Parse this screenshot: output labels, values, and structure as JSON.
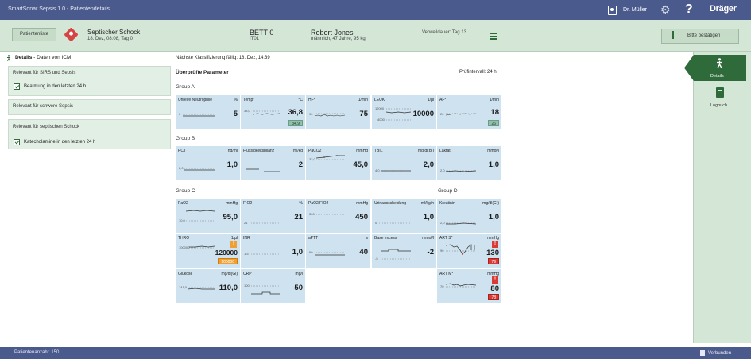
{
  "titlebar": {
    "app_title": "SmartSonar Sepsis 1.0 - Patientendetails",
    "user_name": "Dr. Müller",
    "help_label": "?",
    "brand": "Dräger"
  },
  "header": {
    "patient_list_button": "Patientenliste",
    "diagnosis_title": "Septischer Schock",
    "diagnosis_sub": "18. Dez, 08:08, Tag 0",
    "bed": "BETT 0",
    "unit": "IT01",
    "patient_name": "Robert Jones",
    "patient_info": "männlich, 47 Jahre, 95 kg",
    "stay": "Verweildauer: Tag 13",
    "confirm_button": "Bitte bestätigen"
  },
  "left_panel": {
    "title_bold": "Details",
    "title_rest": " - Daten von ICM",
    "groups": [
      {
        "title": "Relevant für SIRS und Sepsis",
        "items": [
          "Beatmung in den letzten 24 h"
        ]
      },
      {
        "title": "Relevant für schwere Sepsis",
        "items": []
      },
      {
        "title": "Relevant für septischen Schock",
        "items": [
          "Katecholamine in den letzten 24 h"
        ]
      }
    ]
  },
  "main": {
    "next_classification": "Nächste Klassifizierung fällig: 18. Dez, 14:39",
    "checked_params": "Überprüfte Parameter",
    "interval": "Prüfintervall: 24 h",
    "group_labels": {
      "a": "Group A",
      "b": "Group B",
      "c": "Group C",
      "d": "Group D"
    },
    "tiles": {
      "neut": {
        "name": "Unreife Neutrophile",
        "unit": "%",
        "value": "5",
        "scale": "0"
      },
      "temp": {
        "name": "Temp*",
        "unit": "°C",
        "value": "36,8",
        "badge": "34,9",
        "scale": "38,0"
      },
      "hf": {
        "name": "HF*",
        "unit": "1/min",
        "value": "75",
        "scale": "90"
      },
      "leuk": {
        "name": "LEUK",
        "unit": "1/µl",
        "value": "10000",
        "scale": "12000"
      },
      "af": {
        "name": "AF*",
        "unit": "1/min",
        "value": "18",
        "badge": "26",
        "scale": "20"
      },
      "pct": {
        "name": "PCT",
        "unit": "ng/ml",
        "value": "1,0",
        "scale": "2,0"
      },
      "fluid": {
        "name": "Flüssigkeitsbilanz",
        "unit": "ml/kg",
        "value": "2",
        "scale": ""
      },
      "paco2": {
        "name": "PaCO2",
        "unit": "mmHg",
        "value": "45,0",
        "scale": "32,0"
      },
      "tbil": {
        "name": "TBIL",
        "unit": "mg/dl(Bi)",
        "value": "2,0",
        "scale": "4,0"
      },
      "laktat": {
        "name": "Laktat",
        "unit": "mmol/l",
        "value": "1,0",
        "scale": "2,0"
      },
      "pao2": {
        "name": "PaO2",
        "unit": "mmHg",
        "value": "95,0",
        "scale": "70,0"
      },
      "fio2": {
        "name": "FIO2",
        "unit": "%",
        "value": "21",
        "scale": "21"
      },
      "ratio": {
        "name": "PaO2/FIO2",
        "unit": "mmHg",
        "value": "450",
        "scale": "300"
      },
      "urin": {
        "name": "Urinausscheidung",
        "unit": "ml/kg/h",
        "value": "1,0",
        "scale": "0"
      },
      "krea": {
        "name": "Kreatinin",
        "unit": "mg/dl(Cr)",
        "value": "1,0",
        "scale": "2,0"
      },
      "thro": {
        "name": "THRO",
        "unit": "1/µl",
        "value": "120000",
        "badge": "100000",
        "scale": "100000"
      },
      "inr": {
        "name": "INR",
        "unit": "",
        "value": "1,0",
        "scale": "1,5"
      },
      "aptt": {
        "name": "aPTT",
        "unit": "s",
        "value": "40",
        "scale": "60"
      },
      "be": {
        "name": "Base excess",
        "unit": "mmol/l",
        "value": "-2",
        "scale": "-5"
      },
      "arts": {
        "name": "ART S*",
        "unit": "mmHg",
        "value": "130",
        "badge": "79",
        "scale": "90"
      },
      "glu": {
        "name": "Glukose",
        "unit": "mg/dl(Gl)",
        "value": "110,0",
        "scale": "141,0"
      },
      "crp": {
        "name": "CRP",
        "unit": "mg/l",
        "value": "50",
        "scale": "100"
      },
      "artm": {
        "name": "ART M*",
        "unit": "mmHg",
        "value": "80",
        "badge": "78",
        "scale": "70"
      }
    }
  },
  "rightbar": {
    "details": "Details",
    "logbook": "Logbuch"
  },
  "statusbar": {
    "count": "Patientenanzahl: 150",
    "connection": "Verbunden"
  },
  "colors": {
    "primary": "#4a5a8c",
    "header_bg": "#d4e7d7",
    "accent_green": "#2f6b3a",
    "tile_bg": "#cfe2ef",
    "warn_orange": "#f0a032",
    "alert_red": "#d93a34"
  }
}
